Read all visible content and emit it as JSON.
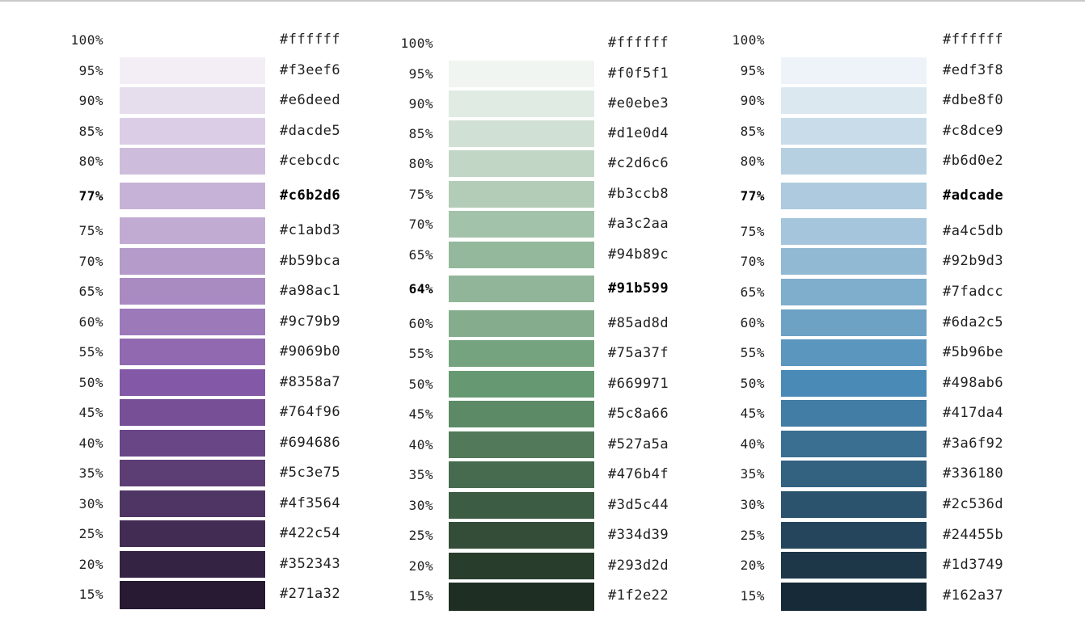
{
  "palettes": [
    {
      "rows": [
        {
          "pct": "100%",
          "hex": "#ffffff",
          "color": "#ffffff"
        },
        {
          "pct": "95%",
          "hex": "#f3eef6",
          "color": "#f3eef6"
        },
        {
          "pct": "90%",
          "hex": "#e6deed",
          "color": "#e6deed"
        },
        {
          "pct": "85%",
          "hex": "#dacde5",
          "color": "#dacde5"
        },
        {
          "pct": "80%",
          "hex": "#cebcdc",
          "color": "#cebcdc"
        },
        {
          "pct": "77%",
          "hex": "#c6b2d6",
          "color": "#c6b2d6",
          "highlight": true
        },
        {
          "pct": "75%",
          "hex": "#c1abd3",
          "color": "#c1abd3"
        },
        {
          "pct": "70%",
          "hex": "#b59bca",
          "color": "#b59bca"
        },
        {
          "pct": "65%",
          "hex": "#a98ac1",
          "color": "#a98ac1"
        },
        {
          "pct": "60%",
          "hex": "#9c79b9",
          "color": "#9c79b9"
        },
        {
          "pct": "55%",
          "hex": "#9069b0",
          "color": "#9069b0"
        },
        {
          "pct": "50%",
          "hex": "#8358a7",
          "color": "#8358a7"
        },
        {
          "pct": "45%",
          "hex": "#764f96",
          "color": "#764f96"
        },
        {
          "pct": "40%",
          "hex": "#694686",
          "color": "#694686"
        },
        {
          "pct": "35%",
          "hex": "#5c3e75",
          "color": "#5c3e75"
        },
        {
          "pct": "30%",
          "hex": "#4f3564",
          "color": "#4f3564"
        },
        {
          "pct": "25%",
          "hex": "#422c54",
          "color": "#422c54"
        },
        {
          "pct": "20%",
          "hex": "#352343",
          "color": "#352343"
        },
        {
          "pct": "15%",
          "hex": "#271a32",
          "color": "#271a32"
        }
      ]
    },
    {
      "rows": [
        {
          "pct": "100%",
          "hex": "#ffffff",
          "color": "#ffffff"
        },
        {
          "pct": "95%",
          "hex": "#f0f5f1",
          "color": "#f0f5f1"
        },
        {
          "pct": "90%",
          "hex": "#e0ebe3",
          "color": "#e0ebe3"
        },
        {
          "pct": "85%",
          "hex": "#d1e0d4",
          "color": "#d1e0d4"
        },
        {
          "pct": "80%",
          "hex": "#c2d6c6",
          "color": "#c2d6c6"
        },
        {
          "pct": "75%",
          "hex": "#b3ccb8",
          "color": "#b3ccb8"
        },
        {
          "pct": "70%",
          "hex": "#a3c2aa",
          "color": "#a3c2aa"
        },
        {
          "pct": "65%",
          "hex": "#94b89c",
          "color": "#94b89c"
        },
        {
          "pct": "64%",
          "hex": "#91b599",
          "color": "#91b599",
          "highlight": true
        },
        {
          "pct": "60%",
          "hex": "#85ad8d",
          "color": "#85ad8d"
        },
        {
          "pct": "55%",
          "hex": "#75a37f",
          "color": "#75a37f"
        },
        {
          "pct": "50%",
          "hex": "#669971",
          "color": "#669971"
        },
        {
          "pct": "45%",
          "hex": "#5c8a66",
          "color": "#5c8a66"
        },
        {
          "pct": "40%",
          "hex": "#527a5a",
          "color": "#527a5a"
        },
        {
          "pct": "35%",
          "hex": "#476b4f",
          "color": "#476b4f"
        },
        {
          "pct": "30%",
          "hex": "#3d5c44",
          "color": "#3d5c44"
        },
        {
          "pct": "25%",
          "hex": "#334d39",
          "color": "#334d39"
        },
        {
          "pct": "20%",
          "hex": "#293d2d",
          "color": "#293d2d"
        },
        {
          "pct": "15%",
          "hex": "#1f2e22",
          "color": "#1f2e22"
        }
      ]
    },
    {
      "rows": [
        {
          "pct": "100%",
          "hex": "#ffffff",
          "color": "#ffffff"
        },
        {
          "pct": "95%",
          "hex": "#edf3f8",
          "color": "#edf3f8"
        },
        {
          "pct": "90%",
          "hex": "#dbe8f0",
          "color": "#dbe8f0"
        },
        {
          "pct": "85%",
          "hex": "#c8dce9",
          "color": "#c8dce9"
        },
        {
          "pct": "80%",
          "hex": "#b6d0e2",
          "color": "#b6d0e2"
        },
        {
          "pct": "77%",
          "hex": "#adcade",
          "color": "#adcade",
          "highlight": true
        },
        {
          "pct": "75%",
          "hex": "#a4c5db",
          "color": "#a4c5db"
        },
        {
          "pct": "70%",
          "hex": "#92b9d3",
          "color": "#92b9d3"
        },
        {
          "pct": "65%",
          "hex": "#7fadcc",
          "color": "#7fadcc"
        },
        {
          "pct": "60%",
          "hex": "#6da2c5",
          "color": "#6da2c5"
        },
        {
          "pct": "55%",
          "hex": "#5b96be",
          "color": "#5b96be"
        },
        {
          "pct": "50%",
          "hex": "#498ab6",
          "color": "#498ab6"
        },
        {
          "pct": "45%",
          "hex": "#417da4",
          "color": "#417da4"
        },
        {
          "pct": "40%",
          "hex": "#3a6f92",
          "color": "#3a6f92"
        },
        {
          "pct": "35%",
          "hex": "#336180",
          "color": "#336180"
        },
        {
          "pct": "30%",
          "hex": "#2c536d",
          "color": "#2c536d"
        },
        {
          "pct": "25%",
          "hex": "#24455b",
          "color": "#24455b"
        },
        {
          "pct": "20%",
          "hex": "#1d3749",
          "color": "#1d3749"
        },
        {
          "pct": "15%",
          "hex": "#162a37",
          "color": "#162a37"
        }
      ]
    }
  ]
}
